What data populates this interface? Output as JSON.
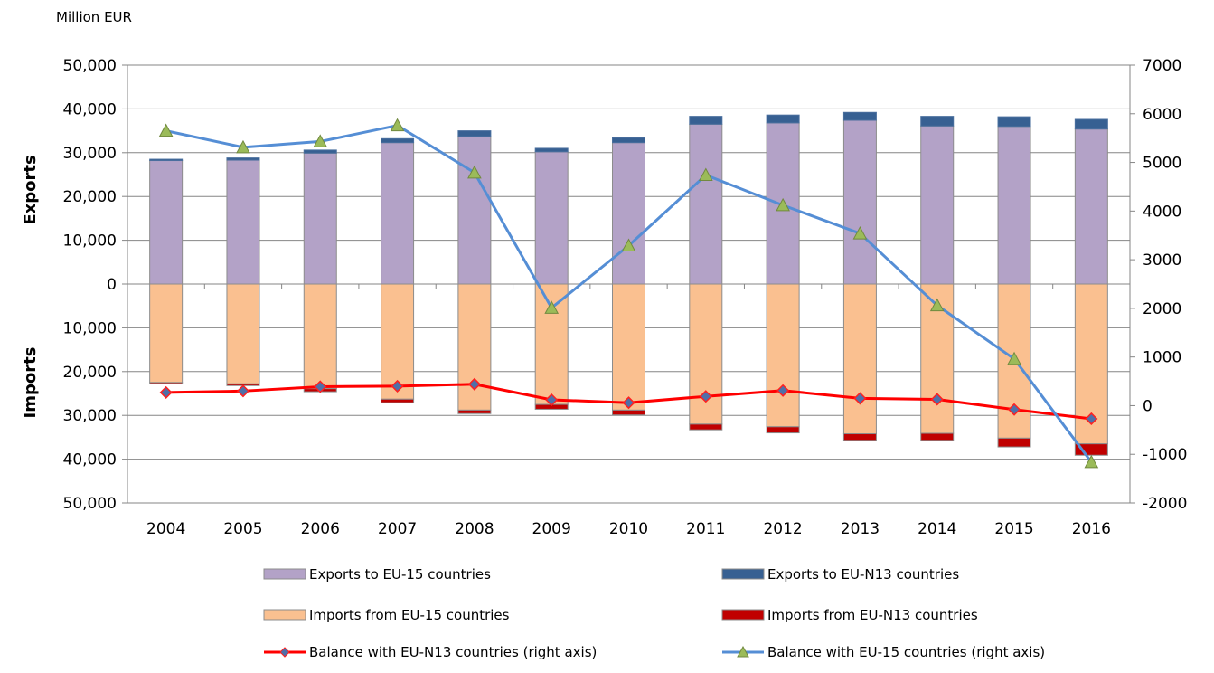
{
  "chart_data": {
    "type": "bar",
    "unit_label": "Million EUR",
    "upper_axis_label": "Exports",
    "lower_axis_label": "Imports",
    "categories": [
      "2004",
      "2005",
      "2006",
      "2007",
      "2008",
      "2009",
      "2010",
      "2011",
      "2012",
      "2013",
      "2014",
      "2015",
      "2016"
    ],
    "left_axis": {
      "range": [
        -50000,
        50000
      ],
      "ticks": [
        50000,
        40000,
        30000,
        20000,
        10000,
        0,
        -10000,
        -20000,
        -30000,
        -40000,
        -50000
      ],
      "tick_labels": [
        "50,000",
        "40,000",
        "30,000",
        "20,000",
        "10,000",
        "0",
        "10,000",
        "20,000",
        "30,000",
        "40,000",
        "50,000"
      ]
    },
    "right_axis": {
      "range": [
        -2000,
        7000
      ],
      "ticks": [
        7000,
        6000,
        5000,
        4000,
        3000,
        2000,
        1000,
        0,
        -1000,
        -2000
      ],
      "tick_labels": [
        "7000",
        "6000",
        "5000",
        "4000",
        "3000",
        "2000",
        "1000",
        "0",
        "-1000",
        "-2000"
      ]
    },
    "grid": true,
    "legend_placement": "bottom",
    "series": [
      {
        "name": "Exports to EU-15 countries",
        "kind": "bar-up",
        "color": "#b3a2c7",
        "values": [
          28200,
          28300,
          29900,
          32300,
          33700,
          30200,
          32300,
          36500,
          36800,
          37400,
          36100,
          36000,
          35400
        ]
      },
      {
        "name": "Exports to EU-N13 countries",
        "kind": "bar-up",
        "color": "#376092",
        "values": [
          300,
          500,
          700,
          900,
          1300,
          800,
          1100,
          1800,
          1800,
          1800,
          2200,
          2200,
          2200
        ]
      },
      {
        "name": "Imports from EU-15 countries",
        "kind": "bar-down",
        "color": "#fac090",
        "values": [
          22500,
          22800,
          23900,
          26300,
          28800,
          27500,
          28800,
          32000,
          32600,
          34200,
          34100,
          35200,
          36500
        ]
      },
      {
        "name": "Imports from EU-N13 countries",
        "kind": "bar-down",
        "color": "#c00000",
        "values": [
          300,
          400,
          700,
          800,
          800,
          1100,
          1100,
          1300,
          1400,
          1500,
          1600,
          2000,
          2600
        ]
      },
      {
        "name": "Balance with EU-N13 countries (right axis)",
        "kind": "line-right",
        "color": "#ff0000",
        "marker": "diamond",
        "values": [
          270,
          300,
          390,
          400,
          440,
          120,
          60,
          190,
          310,
          150,
          130,
          -80,
          -270
        ]
      },
      {
        "name": "Balance with EU-15 countries (right axis)",
        "kind": "line-right",
        "color": "#558ed5",
        "marker": "triangle",
        "values": [
          5650,
          5310,
          5430,
          5760,
          4790,
          2010,
          3290,
          4740,
          4120,
          3540,
          2060,
          960,
          -1160
        ]
      }
    ]
  }
}
